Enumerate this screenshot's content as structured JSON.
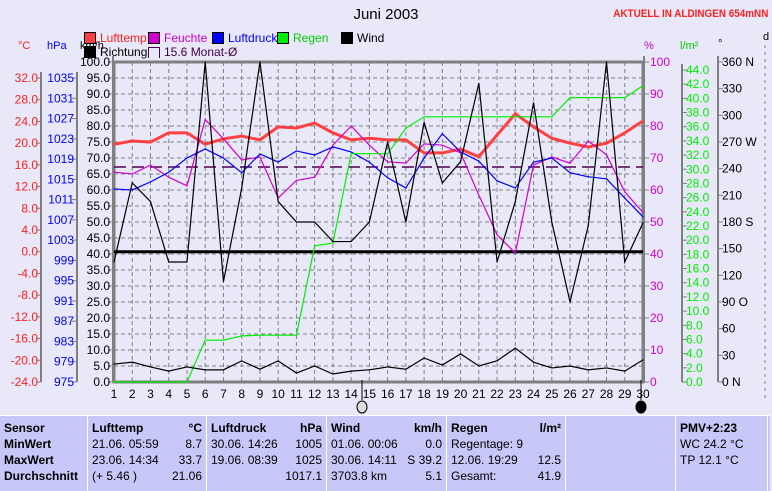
{
  "title": "Juni 2003",
  "aktuell": "AKTUELL IN ALDINGEN 654mNN",
  "units": {
    "temp": "°C",
    "press": "hPa",
    "wind": "km/h",
    "hum": "%",
    "rain": "l/m²",
    "dir": "°",
    "d": "d"
  },
  "legend": {
    "lufttemp": "Lufttemp",
    "feuchte": "Feuchte",
    "luftdruck": "Luftdruck",
    "regen": "Regen",
    "wind": "Wind",
    "richtung": "Richtung",
    "monat": "15.6 Monat-Ø"
  },
  "colors": {
    "temp": "#ff4040",
    "hum": "#d000d0",
    "press": "#0000ff",
    "rain": "#00ee00",
    "wind": "#000000",
    "avg": "#500050",
    "grid": "#808080"
  },
  "chart_data": {
    "type": "line",
    "title": "Juni 2003",
    "x": [
      1,
      2,
      3,
      4,
      5,
      6,
      7,
      8,
      9,
      10,
      11,
      12,
      13,
      14,
      15,
      16,
      17,
      18,
      19,
      20,
      21,
      22,
      23,
      24,
      25,
      26,
      27,
      28,
      29,
      30
    ],
    "axes": {
      "temp": {
        "ticks": [
          "32.0",
          "28.0",
          "24.0",
          "20.0",
          "16.0",
          "12.0",
          "8.0",
          "4.0",
          "0.0",
          "-4.0",
          "-8.0",
          "-12.0",
          "-16.0",
          "-20.0",
          "-24.0"
        ],
        "range": [
          -24,
          32
        ]
      },
      "press": {
        "ticks": [
          "1035",
          "1031",
          "1027",
          "1023",
          "1019",
          "1015",
          "1011",
          "1007",
          "1003",
          "999",
          "995",
          "991",
          "987",
          "983",
          "979",
          "975"
        ],
        "range": [
          975,
          1035
        ]
      },
      "wind": {
        "ticks": [
          "100.0",
          "95.0",
          "90.0",
          "85.0",
          "80.0",
          "75.0",
          "70.0",
          "65.0",
          "60.0",
          "55.0",
          "50.0",
          "45.0",
          "40.0",
          "35.0",
          "30.0",
          "25.0",
          "20.0",
          "15.0",
          "10.0",
          "5.0",
          "0.0"
        ],
        "range": [
          0,
          100
        ]
      },
      "hum": {
        "ticks": [
          "100",
          "90",
          "80",
          "70",
          "60",
          "50",
          "40",
          "30",
          "20",
          "10",
          "0"
        ],
        "range": [
          0,
          100
        ]
      },
      "rain": {
        "ticks": [
          "44.0",
          "42.0",
          "40.0",
          "38.0",
          "36.0",
          "34.0",
          "32.0",
          "30.0",
          "28.0",
          "26.0",
          "24.0",
          "22.0",
          "20.0",
          "18.0",
          "16.0",
          "14.0",
          "12.0",
          "10.0",
          "8.0",
          "6.0",
          "4.0",
          "2.0",
          "0.0"
        ],
        "range": [
          0,
          44
        ]
      },
      "dir": {
        "ticks": [
          "360 N",
          "330",
          "300",
          "270 W",
          "240",
          "210",
          "180 S",
          "150",
          "120",
          "90  O",
          "60",
          "30",
          "0    N"
        ],
        "range": [
          0,
          360
        ]
      }
    },
    "series": [
      {
        "name": "Lufttemp",
        "axis": "temp",
        "values": [
          19.8,
          20.4,
          20.2,
          21.9,
          21.9,
          19.8,
          20.8,
          21.3,
          20.6,
          23.0,
          22.8,
          23.7,
          21.9,
          20.6,
          20.9,
          20.6,
          20.6,
          18.2,
          18.2,
          18.9,
          17.5,
          21.5,
          25.4,
          23.0,
          20.9,
          20.0,
          19.3,
          20.0,
          21.9,
          24.1
        ]
      },
      {
        "name": "Feuchte",
        "axis": "hum",
        "values": [
          65.6,
          65,
          67.8,
          64,
          61.3,
          82,
          76,
          69.4,
          70.3,
          57.5,
          63,
          64,
          74,
          80,
          74,
          68.8,
          68.4,
          74.4,
          74,
          71.6,
          58.4,
          46,
          40.3,
          67.8,
          70.3,
          68.4,
          75.3,
          71,
          59.4,
          53
        ]
      },
      {
        "name": "Luftdruck",
        "axis": "press",
        "values": [
          1013.1,
          1012.9,
          1014.5,
          1016.4,
          1019.2,
          1021,
          1019.2,
          1016.3,
          1020,
          1018.4,
          1020.6,
          1019.8,
          1021.4,
          1020.4,
          1018.4,
          1015.3,
          1013.3,
          1019.2,
          1024,
          1020.4,
          1018.6,
          1014.7,
          1013.3,
          1018.4,
          1019.2,
          1016.3,
          1015.5,
          1015.1,
          1011.3,
          1007.6
        ]
      },
      {
        "name": "Regen",
        "axis": "rain",
        "values": [
          0,
          0,
          0,
          0,
          0,
          5.9,
          5.9,
          6.5,
          6.6,
          6.6,
          6.6,
          19.2,
          19.6,
          32.2,
          32.2,
          32.2,
          35.8,
          37.4,
          37.4,
          37.4,
          37.4,
          37.4,
          37.4,
          37.4,
          37.4,
          40.1,
          40.1,
          40.1,
          40.1,
          41.8
        ]
      },
      {
        "name": "Wind",
        "axis": "wind",
        "values": [
          5.6,
          6.2,
          4.7,
          3.4,
          4.7,
          3.8,
          3.8,
          6.6,
          4.0,
          6.6,
          2.8,
          5.0,
          2.5,
          3.4,
          3.8,
          4.7,
          4.0,
          7.5,
          5.3,
          8.8,
          5.0,
          6.6,
          10.6,
          6.2,
          4.4,
          5.0,
          3.8,
          4.4,
          3.4,
          6.9
        ]
      },
      {
        "name": "Richtung",
        "axis": "dir",
        "values": [
          135,
          224,
          203,
          135,
          135,
          360,
          113,
          218,
          360,
          203,
          180,
          180,
          158,
          158,
          180,
          270,
          180,
          292,
          224,
          248,
          336,
          135,
          203,
          314,
          180,
          90,
          176,
          360,
          135,
          179
        ]
      }
    ],
    "reference_lines": [
      {
        "name": "Monat-Ø",
        "axis": "temp",
        "value": 15.6
      },
      {
        "name": "0 °C",
        "axis": "temp",
        "value": 0
      }
    ]
  },
  "table": {
    "cols": [
      {
        "h": [
          "Sensor",
          ""
        ],
        "rows": [
          [
            "MinWert",
            ""
          ],
          [
            "MaxWert",
            ""
          ],
          [
            "Durchschnitt",
            ""
          ]
        ]
      },
      {
        "h": [
          "Lufttemp",
          "°C"
        ],
        "rows": [
          [
            "21.06.  05:59",
            "8.7"
          ],
          [
            "23.06.  14:34",
            "33.7"
          ],
          [
            "(+ 5.46 )",
            "21.06"
          ]
        ]
      },
      {
        "h": [
          "Luftdruck",
          "hPa"
        ],
        "rows": [
          [
            "30.06.  14:26",
            "1005"
          ],
          [
            "19.06.  08:39",
            "1025"
          ],
          [
            "",
            "1017.1"
          ]
        ]
      },
      {
        "h": [
          "Wind",
          "km/h"
        ],
        "rows": [
          [
            "01.06.  00:06",
            "0.0"
          ],
          [
            "30.06.  14:11",
            "S 39.2"
          ],
          [
            "3703.8 km",
            "5.1"
          ]
        ]
      },
      {
        "h": [
          "Regen",
          "l/m²"
        ],
        "rows": [
          [
            "Regentage: 9",
            ""
          ],
          [
            "12.06.  19:29",
            "12.5"
          ],
          [
            "Gesamt:",
            "41.9"
          ]
        ]
      },
      {
        "h": [
          "",
          ""
        ],
        "rows": []
      },
      {
        "h": [
          "PMV+2:23",
          ""
        ],
        "rows": [
          [
            "WC 24.2 °C",
            ""
          ],
          [
            "TP 12.1 °C",
            ""
          ]
        ]
      }
    ]
  }
}
